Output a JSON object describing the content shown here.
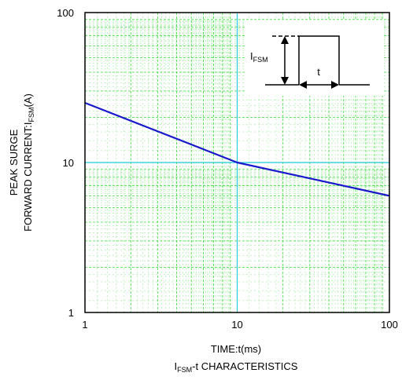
{
  "chart_data": {
    "type": "line",
    "title": "I_FSM-t CHARACTERISTICS",
    "title_main": "I",
    "title_sub": "FSM",
    "title_rest": "-t CHARACTERISTICS",
    "xlabel": "TIME:t(ms)",
    "ylabel_line1": "PEAK SURGE",
    "ylabel_line2_pre": "FORWARD CURRENT:I",
    "ylabel_line2_sub": "FSM",
    "ylabel_line2_post": "(A)",
    "x_scale": "log",
    "y_scale": "log",
    "xlim": [
      1,
      100
    ],
    "ylim": [
      1,
      100
    ],
    "x_ticks": [
      1,
      10,
      100
    ],
    "y_ticks": [
      1,
      10,
      100
    ],
    "x_tick_labels": [
      "1",
      "10",
      "100"
    ],
    "y_tick_labels": [
      "1",
      "10",
      "100"
    ],
    "grid": true,
    "series": [
      {
        "x": [
          1,
          10,
          100
        ],
        "y": [
          25,
          10,
          6
        ]
      }
    ],
    "inset": {
      "label_main": "I",
      "label_sub": "FSM",
      "t_label": "t"
    },
    "colors": {
      "series": "#1a1acc",
      "minor_grid": "#33dd33",
      "major_grid": "#22ccdd",
      "frame": "#000000"
    }
  }
}
